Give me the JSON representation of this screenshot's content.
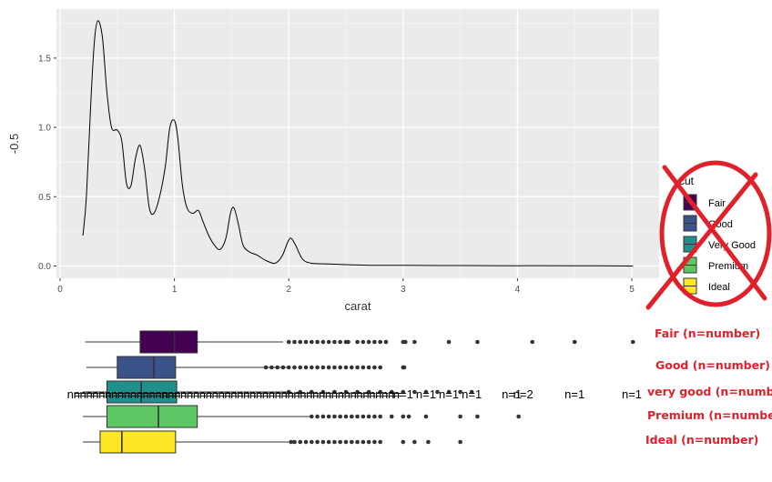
{
  "chart_data": {
    "density": {
      "type": "line",
      "xlabel": "carat",
      "ylabel": "-0.5",
      "xlim": [
        0,
        5.2
      ],
      "ylim": [
        -0.1,
        1.82
      ],
      "xticks": [
        0,
        1,
        2,
        3,
        4,
        5
      ],
      "xtick_labels": [
        "0",
        "1",
        "2",
        "3",
        "4",
        "5"
      ],
      "yticks": [
        0.0,
        0.5,
        1.0,
        1.5
      ],
      "ytick_labels": [
        "0.0",
        "0.5",
        "1.0",
        "1.5"
      ],
      "grid": true,
      "x": [
        0.2,
        0.23,
        0.27,
        0.3,
        0.33,
        0.37,
        0.41,
        0.45,
        0.5,
        0.54,
        0.58,
        0.62,
        0.66,
        0.7,
        0.74,
        0.78,
        0.82,
        0.87,
        0.92,
        0.96,
        1.0,
        1.03,
        1.07,
        1.11,
        1.16,
        1.21,
        1.25,
        1.3,
        1.35,
        1.4,
        1.45,
        1.49,
        1.52,
        1.56,
        1.6,
        1.66,
        1.72,
        1.8,
        1.88,
        1.94,
        1.99,
        2.02,
        2.06,
        2.12,
        2.2,
        2.35,
        2.5,
        2.7,
        3.0,
        3.5,
        4.0,
        4.5,
        5.01
      ],
      "y": [
        0.22,
        0.5,
        1.2,
        1.62,
        1.77,
        1.65,
        1.25,
        1.0,
        0.98,
        0.9,
        0.6,
        0.58,
        0.78,
        0.87,
        0.7,
        0.42,
        0.38,
        0.5,
        0.72,
        1.0,
        1.05,
        0.92,
        0.58,
        0.42,
        0.38,
        0.4,
        0.32,
        0.22,
        0.15,
        0.12,
        0.2,
        0.38,
        0.42,
        0.3,
        0.15,
        0.1,
        0.08,
        0.04,
        0.02,
        0.07,
        0.17,
        0.2,
        0.15,
        0.05,
        0.02,
        0.015,
        0.01,
        0.005,
        0.005,
        0.003,
        0.002,
        0.002,
        0.0
      ]
    },
    "boxplot": {
      "type": "box",
      "categories": [
        "Fair",
        "Good",
        "Very Good",
        "Premium",
        "Ideal"
      ],
      "colors": [
        "#440154",
        "#3b528b",
        "#21908c",
        "#5dc863",
        "#fde725"
      ],
      "whisker_low": [
        0.22,
        0.23,
        0.2,
        0.2,
        0.2
      ],
      "q1": [
        0.7,
        0.5,
        0.41,
        0.41,
        0.35
      ],
      "median": [
        1.0,
        0.82,
        0.71,
        0.86,
        0.54
      ],
      "q3": [
        1.2,
        1.01,
        1.02,
        1.2,
        1.01
      ],
      "whisker_high": [
        1.95,
        2.0,
        2.0,
        2.2,
        2.02
      ],
      "outliers": [
        [
          2.0,
          2.05,
          2.1,
          2.15,
          2.2,
          2.25,
          2.3,
          2.35,
          2.4,
          2.45,
          2.5,
          2.52,
          2.6,
          2.65,
          2.7,
          2.75,
          2.8,
          2.85,
          3.0,
          3.02,
          3.1,
          3.4,
          3.65,
          4.13,
          4.5,
          5.01
        ],
        [
          1.8,
          1.85,
          1.9,
          1.95,
          2.0,
          2.05,
          2.1,
          2.15,
          2.2,
          2.25,
          2.3,
          2.35,
          2.4,
          2.45,
          2.5,
          2.55,
          2.6,
          2.65,
          2.7,
          2.75,
          2.8,
          3.0,
          3.01
        ],
        [
          2.0,
          2.1,
          2.2,
          2.3,
          2.4,
          2.5,
          2.6,
          2.7,
          2.8,
          2.9,
          3.0,
          3.1,
          3.2,
          3.3,
          3.4,
          3.5,
          3.6
        ],
        [
          2.2,
          2.25,
          2.3,
          2.35,
          2.4,
          2.45,
          2.5,
          2.55,
          2.6,
          2.65,
          2.7,
          2.75,
          2.8,
          2.9,
          3.0,
          3.05,
          3.2,
          3.5,
          3.65,
          4.01
        ],
        [
          2.02,
          2.05,
          2.1,
          2.15,
          2.2,
          2.25,
          2.3,
          2.35,
          2.4,
          2.45,
          2.5,
          2.55,
          2.6,
          2.65,
          2.7,
          2.75,
          2.8,
          3.0,
          3.1,
          3.22,
          3.5
        ]
      ],
      "n_labels": [
        {
          "text": "n=",
          "x": 0.95
        },
        {
          "text": "n=1",
          "x": 3.0
        },
        {
          "text": "n=1",
          "x": 3.2
        },
        {
          "text": "n=1",
          "x": 3.4
        },
        {
          "text": "n=1",
          "x": 3.6
        },
        {
          "text": "n=1",
          "x": 3.95
        },
        {
          "text": "n=2",
          "x": 4.05
        },
        {
          "text": "n=1",
          "x": 4.5
        },
        {
          "text": "n=1",
          "x": 5.0
        }
      ]
    }
  },
  "legend": {
    "title": "cut",
    "items": [
      {
        "label": "Fair",
        "color": "#440154"
      },
      {
        "label": "Good",
        "color": "#3b528b"
      },
      {
        "label": "Very Good",
        "color": "#21908c"
      },
      {
        "label": "Premium",
        "color": "#5dc863"
      },
      {
        "label": "Ideal",
        "color": "#fde725"
      }
    ],
    "cross_out_color": "#e0202a"
  },
  "annotations": [
    "Fair (n=number)",
    "Good (n=number)",
    "very good (n=number)",
    "Premium (n=number)",
    "Ideal (n=number)"
  ]
}
